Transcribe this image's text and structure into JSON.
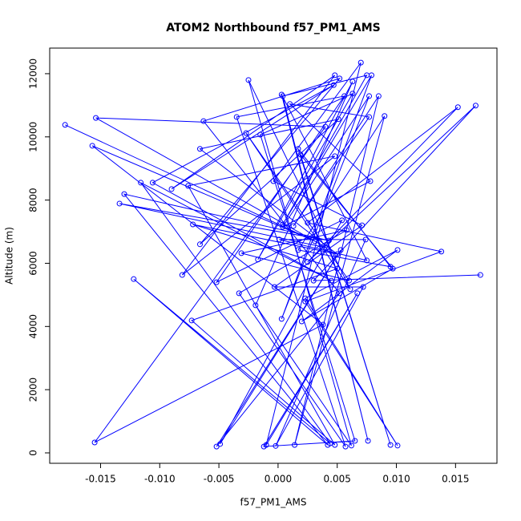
{
  "chart_data": {
    "type": "line",
    "markers": true,
    "title": "ATOM2 Northbound f57_PM1_AMS",
    "xlabel": "f57_PM1_AMS",
    "ylabel": "Altitude (m)",
    "color": "#0000ff",
    "x": [
      -0.018,
      0.0031,
      -0.0157,
      0.0038,
      -0.0155,
      0.004,
      -0.0154,
      0.0041,
      -0.0134,
      0.0043,
      -0.013,
      0.0042,
      -0.0122,
      0.0044,
      -0.0116,
      0.0045,
      -0.0106,
      0.0047,
      -0.009,
      0.0048,
      -0.0081,
      0.0048,
      -0.0076,
      0.0048,
      -0.0073,
      0.005,
      -0.0072,
      0.005,
      -0.0066,
      0.0051,
      -0.0066,
      0.0052,
      -0.0063,
      0.0052,
      -0.0052,
      0.0053,
      -0.0049,
      0.0054,
      -0.0052,
      0.0056,
      -0.0035,
      0.0057,
      -0.0033,
      0.0058,
      -0.0031,
      0.006,
      -0.0027,
      0.0061,
      -0.0025,
      0.0062,
      -0.0019,
      0.0063,
      -0.0017,
      0.0063,
      -0.0015,
      0.0065,
      -0.0012,
      0.0067,
      -0.001,
      0.007,
      -0.0004,
      0.0071,
      -0.0003,
      0.0072,
      -0.0002,
      0.0074,
      0.0001,
      0.0075,
      0.0003,
      0.0076,
      0.0004,
      0.0075,
      0.0004,
      0.0079,
      0.0003,
      0.0077,
      0.0004,
      0.0078,
      0.001,
      0.0077,
      0.0013,
      0.0085,
      0.0014,
      0.009,
      0.0017,
      0.0095,
      0.0017,
      0.0095,
      0.0019,
      0.0097,
      0.002,
      0.0101,
      0.0023,
      0.0101,
      0.0023,
      0.0138,
      0.0025,
      0.0152,
      0.0025,
      0.0167,
      0.003,
      0.0171
    ],
    "y": [
      10380,
      6700,
      9720,
      4060,
      330,
      10320,
      10600,
      6490,
      7890,
      6720,
      8190,
      250,
      5500,
      300,
      8550,
      5450,
      8550,
      11640,
      8350,
      11950,
      5630,
      9390,
      8450,
      250,
      4190,
      5830,
      7230,
      6290,
      9620,
      10560,
      6600,
      11850,
      10500,
      5050,
      200,
      6420,
      280,
      7360,
      5400,
      11290,
      10630,
      200,
      5050,
      7050,
      6320,
      5450,
      10120,
      5180,
      11800,
      230,
      4670,
      11750,
      6120,
      11370,
      10070,
      380,
      200,
      5050,
      250,
      12350,
      8600,
      7200,
      5250,
      5250,
      220,
      6750,
      6750,
      6090,
      11340,
      380,
      11290,
      11950,
      7230,
      11950,
      4240,
      11290,
      7150,
      8600,
      11040,
      10630,
      7180,
      11290,
      250,
      10660,
      6420,
      5890,
      9620,
      250,
      9440,
      5830,
      4160,
      6420,
      4890,
      230,
      4790,
      6370,
      7280,
      10940,
      6040,
      10990,
      5450,
      5630
    ],
    "xlim": [
      -0.0193,
      0.0185
    ],
    "ylim": [
      -330,
      12810
    ],
    "xticks": [
      -0.015,
      {
        "value": -0.01,
        "label": "-0.010"
      },
      -0.005,
      {
        "value": 0,
        "label": "0.000"
      },
      0.005,
      {
        "value": 0.01,
        "label": "0.010"
      },
      0.015
    ],
    "yticks": [
      0,
      2000,
      4000,
      6000,
      8000,
      10000,
      12000
    ]
  }
}
